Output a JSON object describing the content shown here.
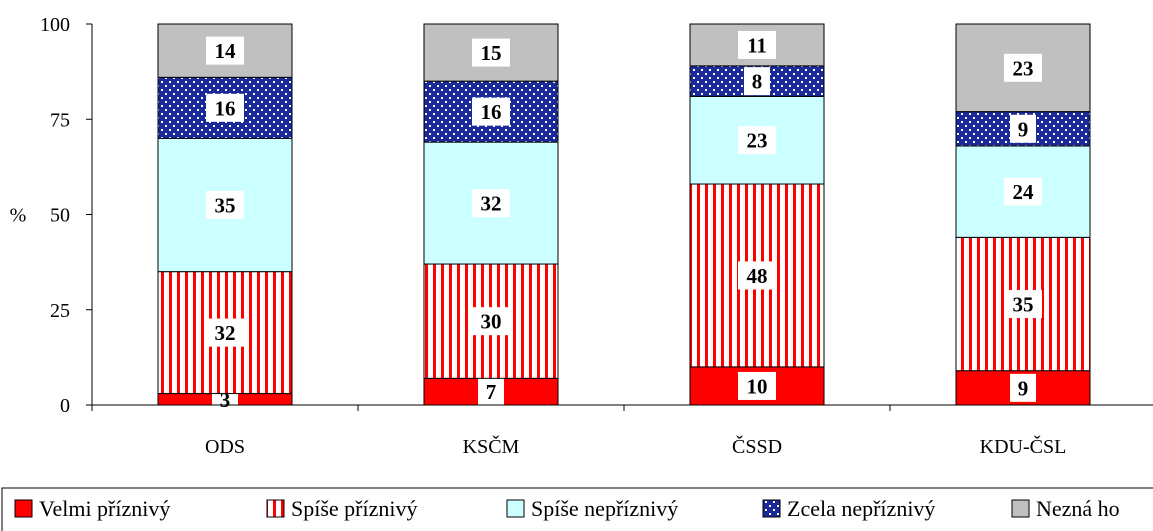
{
  "chart_data": {
    "type": "bar",
    "stacked": true,
    "title": "",
    "xlabel": "",
    "ylabel": "%",
    "ylim": [
      0,
      100
    ],
    "yticks": [
      "0",
      "25",
      "50",
      "75",
      "100"
    ],
    "categories": [
      "ODS",
      "KSČM",
      "ČSSD",
      "KDU-ČSL"
    ],
    "series": [
      {
        "name": "Velmi příznivý",
        "values": [
          3,
          7,
          10,
          9
        ],
        "color": "#ff0000",
        "pattern": "solid"
      },
      {
        "name": "Spíše příznivý",
        "values": [
          32,
          30,
          48,
          35
        ],
        "color": "#ff0000",
        "pattern": "vertical-stripes"
      },
      {
        "name": "Spíše nepříznivý",
        "values": [
          35,
          32,
          23,
          24
        ],
        "color": "#ccffff",
        "pattern": "solid"
      },
      {
        "name": "Zcela nepříznivý",
        "values": [
          16,
          16,
          8,
          9
        ],
        "color": "#000080",
        "pattern": "dots"
      },
      {
        "name": "Nezná ho",
        "values": [
          14,
          15,
          11,
          23
        ],
        "color": "#c0c0c0",
        "pattern": "solid"
      }
    ],
    "grid": false,
    "legend_position": "bottom"
  }
}
